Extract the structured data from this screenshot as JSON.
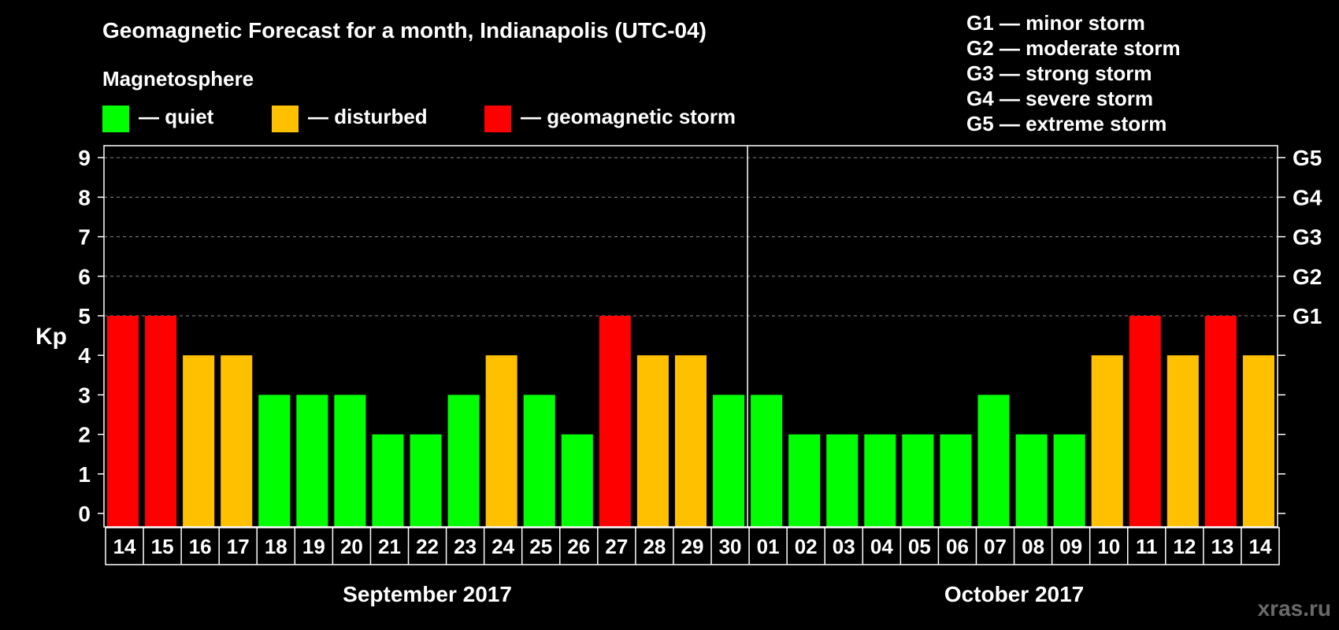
{
  "title": "Geomagnetic Forecast for a month, Indianapolis (UTC-04)",
  "legend": {
    "heading": "Magnetosphere",
    "items": [
      {
        "label": "— quiet",
        "color": "#00ff00"
      },
      {
        "label": "— disturbed",
        "color": "#ffc000"
      },
      {
        "label": "— geomagnetic storm",
        "color": "#ff0000"
      }
    ]
  },
  "storm_scale": [
    "G1 — minor storm",
    "G2 — moderate storm",
    "G3 — strong storm",
    "G4 — severe storm",
    "G5 — extreme storm"
  ],
  "watermark": "xras.ru",
  "chart_data": {
    "type": "bar",
    "ylabel": "Kp",
    "ylim": [
      0,
      9
    ],
    "yticks": [
      0,
      1,
      2,
      3,
      4,
      5,
      6,
      7,
      8,
      9
    ],
    "right_ticks": [
      {
        "kp": 5,
        "label": "G1"
      },
      {
        "kp": 6,
        "label": "G2"
      },
      {
        "kp": 7,
        "label": "G3"
      },
      {
        "kp": 8,
        "label": "G4"
      },
      {
        "kp": 9,
        "label": "G5"
      }
    ],
    "grid": true,
    "months": [
      {
        "label": "September 2017",
        "count": 17
      },
      {
        "label": "October 2017",
        "count": 14
      }
    ],
    "categories": [
      "14",
      "15",
      "16",
      "17",
      "18",
      "19",
      "20",
      "21",
      "22",
      "23",
      "24",
      "25",
      "26",
      "27",
      "28",
      "29",
      "30",
      "01",
      "02",
      "03",
      "04",
      "05",
      "06",
      "07",
      "08",
      "09",
      "10",
      "11",
      "12",
      "13",
      "14"
    ],
    "values": [
      5,
      5,
      4,
      4,
      3,
      3,
      3,
      2,
      2,
      3,
      4,
      3,
      2,
      5,
      4,
      4,
      3,
      3,
      2,
      2,
      2,
      2,
      2,
      3,
      2,
      2,
      4,
      5,
      4,
      5,
      4
    ],
    "color_rule": {
      "quiet_max": 3,
      "disturbed": 4,
      "storm_min": 5
    }
  }
}
